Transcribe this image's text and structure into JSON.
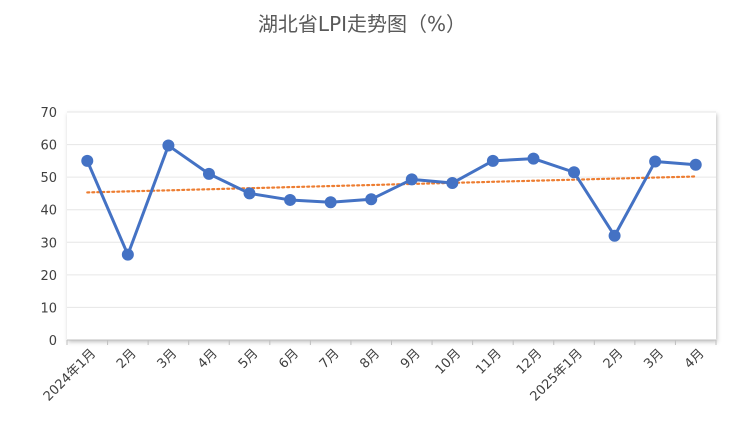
{
  "chart_data": {
    "type": "line",
    "title": "湖北省LPI走势图（%）",
    "xlabel": "",
    "ylabel": "",
    "categories": [
      "2024年1月",
      "2月",
      "3月",
      "4月",
      "5月",
      "6月",
      "7月",
      "8月",
      "9月",
      "10月",
      "11月",
      "12月",
      "2025年1月",
      "2月",
      "3月",
      "4月"
    ],
    "series": [
      {
        "name": "",
        "values": [
          55.0,
          26.2,
          59.7,
          51.0,
          45.0,
          43.0,
          42.3,
          43.2,
          49.3,
          48.2,
          55.0,
          55.7,
          51.5,
          32.0,
          54.8,
          53.8
        ],
        "color": "#4472C4"
      }
    ],
    "trendline": {
      "type": "linear",
      "start": 45.3,
      "end": 50.2,
      "color": "#ED7D31",
      "style": "dotted"
    },
    "ylim": [
      0,
      70
    ],
    "yticks": [
      0,
      10,
      20,
      30,
      40,
      50,
      60,
      70
    ],
    "grid": true,
    "legend": "none"
  }
}
